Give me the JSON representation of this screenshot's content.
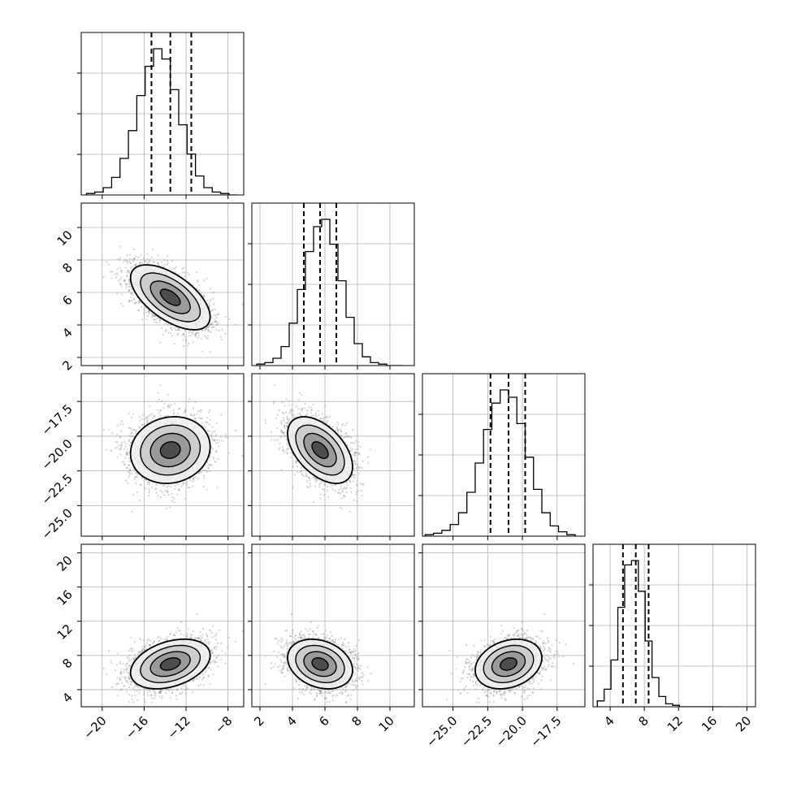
{
  "chart_data": {
    "type": "scatter",
    "subtype": "corner-plot",
    "grid": true,
    "colors": {
      "hist": "#000000",
      "scatter": "#808080",
      "grid": "#b0b0b0"
    },
    "params": [
      {
        "range": [
          -22,
          -6.5
        ],
        "ticks": [
          -20,
          -16,
          -12,
          -8
        ],
        "tick_labels": [
          "−20",
          "−16",
          "−12",
          "−8"
        ],
        "mean": -13.5,
        "sd": 1.9,
        "quantiles": [
          -15.3,
          -13.5,
          -11.5
        ],
        "hist_bins": [
          -21.5,
          -20.7,
          -19.9,
          -19.1,
          -18.3,
          -17.5,
          -16.7,
          -15.9,
          -15.1,
          -14.3,
          -13.5,
          -12.7,
          -11.9,
          -11.1,
          -10.3,
          -9.5,
          -8.7,
          -7.9
        ],
        "hist_counts": [
          0.01,
          0.02,
          0.05,
          0.12,
          0.25,
          0.44,
          0.68,
          0.88,
          1.0,
          0.93,
          0.72,
          0.48,
          0.28,
          0.13,
          0.05,
          0.02,
          0.01,
          0.0
        ]
      },
      {
        "range": [
          1.5,
          11.5
        ],
        "ticks": [
          2,
          4,
          6,
          8,
          10
        ],
        "tick_labels": [
          "2",
          "4",
          "6",
          "8",
          "10"
        ],
        "mean": 5.7,
        "sd": 1.0,
        "quantiles": [
          4.7,
          5.7,
          6.7
        ],
        "hist_bins": [
          1.8,
          2.3,
          2.8,
          3.3,
          3.8,
          4.3,
          4.8,
          5.3,
          5.8,
          6.3,
          6.8,
          7.3,
          7.8,
          8.3,
          8.8,
          9.3,
          9.8,
          10.3
        ],
        "hist_counts": [
          0.01,
          0.02,
          0.05,
          0.13,
          0.29,
          0.52,
          0.78,
          0.95,
          1.0,
          0.83,
          0.58,
          0.33,
          0.15,
          0.06,
          0.02,
          0.01,
          0.0,
          0.0
        ]
      },
      {
        "range": [
          -27.2,
          -15.5
        ],
        "ticks": [
          -25.0,
          -22.5,
          -20.0,
          -17.5
        ],
        "tick_labels": [
          "−25.0",
          "−22.5",
          "−20.0",
          "−17.5"
        ],
        "mean": -21.0,
        "sd": 1.2,
        "quantiles": [
          -22.3,
          -21.0,
          -19.8
        ],
        "hist_bins": [
          -27.0,
          -26.4,
          -25.8,
          -25.2,
          -24.6,
          -24.0,
          -23.4,
          -22.8,
          -22.2,
          -21.6,
          -21.0,
          -20.4,
          -19.8,
          -19.2,
          -18.6,
          -18.0,
          -17.4,
          -16.8
        ],
        "hist_counts": [
          0.01,
          0.02,
          0.04,
          0.08,
          0.16,
          0.3,
          0.5,
          0.73,
          0.91,
          1.0,
          0.95,
          0.77,
          0.54,
          0.32,
          0.16,
          0.07,
          0.03,
          0.01
        ]
      },
      {
        "range": [
          2,
          21
        ],
        "ticks": [
          4,
          8,
          12,
          16,
          20
        ],
        "tick_labels": [
          "4",
          "8",
          "12",
          "16",
          "20"
        ],
        "mean": 7.0,
        "sd": 1.45,
        "quantiles": [
          5.5,
          7.0,
          8.5
        ],
        "hist_bins": [
          2.5,
          3.3,
          4.1,
          4.9,
          5.7,
          6.5,
          7.3,
          8.1,
          8.9,
          9.7,
          10.5,
          11.3,
          12.1,
          12.9,
          13.7,
          14.5,
          15.3,
          16.1
        ],
        "hist_counts": [
          0.04,
          0.12,
          0.32,
          0.68,
          0.97,
          1.0,
          0.79,
          0.45,
          0.2,
          0.07,
          0.02,
          0.01,
          0.0,
          0.0,
          0.0,
          0.0,
          0.0,
          0.0
        ]
      }
    ],
    "correlations": [
      {
        "row": 1,
        "col": 0,
        "rho": -0.6
      },
      {
        "row": 2,
        "col": 0,
        "rho": 0.1
      },
      {
        "row": 2,
        "col": 1,
        "rho": -0.5
      },
      {
        "row": 3,
        "col": 0,
        "rho": 0.35
      },
      {
        "row": 3,
        "col": 1,
        "rho": -0.25
      },
      {
        "row": 3,
        "col": 2,
        "rho": 0.25
      }
    ],
    "contour_levels_sigma": [
      0.5,
      1.0,
      1.5,
      2.0
    ]
  }
}
